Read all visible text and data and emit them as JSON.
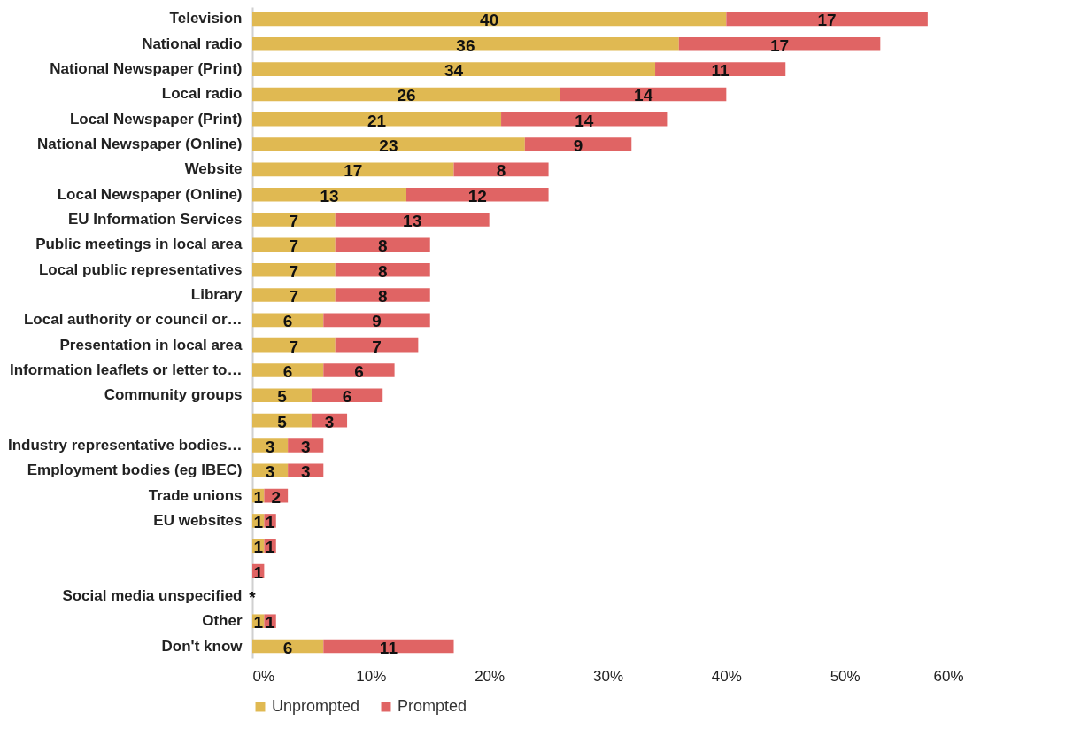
{
  "chart_data": {
    "type": "bar",
    "orientation": "horizontal",
    "stacked": true,
    "categories": [
      "Television",
      "National radio",
      "National Newspaper (Print)",
      "Local radio",
      "Local Newspaper (Print)",
      "National Newspaper (Online)",
      "Website",
      "Local Newspaper (Online)",
      "EU Information Services",
      "Public meetings in local area",
      "Local public representatives",
      "Library",
      "Local authority or council or…",
      "Presentation in local area",
      "Information leaflets or letter to…",
      "Community groups",
      null,
      "Industry representative bodies…",
      "Employment bodies (eg IBEC)",
      "Trade unions",
      "EU websites",
      null,
      null,
      "Social media unspecified",
      "Other",
      "Don't know"
    ],
    "series": [
      {
        "name": "Unprompted",
        "color": "#e0b952",
        "values": [
          40,
          36,
          34,
          26,
          21,
          23,
          17,
          13,
          7,
          7,
          7,
          7,
          6,
          7,
          6,
          5,
          5,
          3,
          3,
          1,
          1,
          1,
          0,
          0,
          1,
          6
        ],
        "value_labels": [
          "40",
          "36",
          "34",
          "26",
          "21",
          "23",
          "17",
          "13",
          "7",
          "7",
          "7",
          "7",
          "6",
          "7",
          "6",
          "5",
          "5",
          "3",
          "3",
          "1",
          "1",
          "1",
          null,
          "*",
          "1",
          "6"
        ]
      },
      {
        "name": "Prompted",
        "color": "#e06464",
        "values": [
          17,
          17,
          11,
          14,
          14,
          9,
          8,
          12,
          13,
          8,
          8,
          8,
          9,
          7,
          6,
          6,
          3,
          3,
          3,
          2,
          1,
          1,
          1,
          0,
          1,
          11
        ],
        "value_labels": [
          "17",
          "17",
          "11",
          "14",
          "14",
          "9",
          "8",
          "12",
          "13",
          "8",
          "8",
          "8",
          "9",
          "7",
          "6",
          "6",
          "3",
          "3",
          "3",
          "2",
          "1",
          "1",
          "1",
          null,
          "1",
          "11"
        ]
      }
    ],
    "xlim": [
      0,
      60
    ],
    "xticks": [
      {
        "value": 0,
        "label": "0%"
      },
      {
        "value": 10,
        "label": "10%"
      },
      {
        "value": 20,
        "label": "20%"
      },
      {
        "value": 30,
        "label": "30%"
      },
      {
        "value": 40,
        "label": "40%"
      },
      {
        "value": 50,
        "label": "50%"
      },
      {
        "value": 60,
        "label": "60%"
      }
    ],
    "grid": false,
    "legend": "bottom"
  }
}
